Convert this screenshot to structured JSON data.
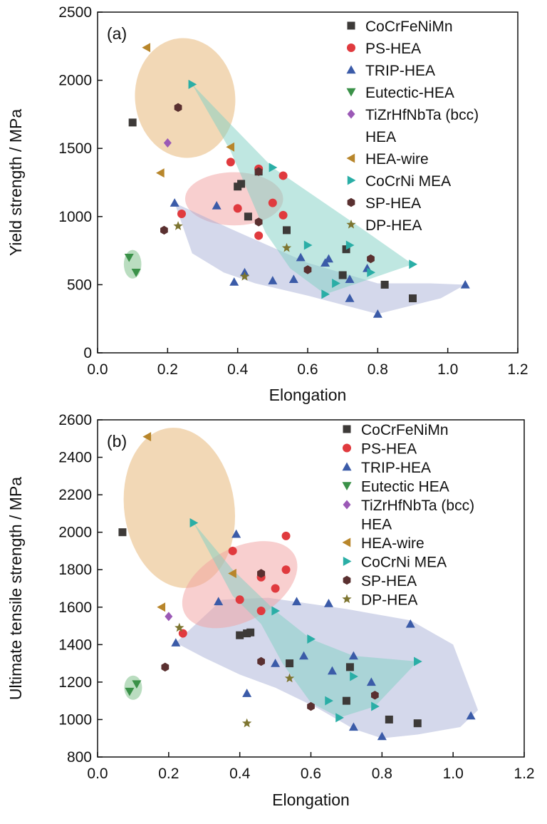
{
  "colors": {
    "CoCrFeNiMn": "#3d3a38",
    "PS-HEA": "#e03a3e",
    "TRIP-HEA": "#3b5ba8",
    "Eutectic-HEA": "#3a9148",
    "TiZrHfNbTa": "#9b59b6",
    "HEA-wire": "#b8862b",
    "CoCrNi": "#2aaea6",
    "SP-HEA": "#5a3030",
    "DP-HEA": "#7d7530"
  },
  "chart_data": [
    {
      "type": "scatter",
      "panel_label": "(a)",
      "xlabel": "Elongation",
      "ylabel": "Yield strength / MPa",
      "xlim": [
        0.0,
        1.2
      ],
      "ylim": [
        0,
        2500
      ],
      "xticks": [
        "0.0",
        "0.2",
        "0.4",
        "0.6",
        "0.8",
        "1.0",
        "1.2"
      ],
      "yticks": [
        "0",
        "500",
        "1000",
        "1500",
        "2000",
        "2500"
      ],
      "legend_position": "top-right",
      "legend": [
        {
          "label": "CoCrFeNiMn",
          "series": 0
        },
        {
          "label": "PS-HEA",
          "series": 1
        },
        {
          "label": "TRIP-HEA",
          "series": 2
        },
        {
          "label": "Eutectic-HEA",
          "series": 3
        },
        {
          "label": "TiZrHfNbTa (bcc)",
          "series": 4
        },
        {
          "label": "HEA",
          "series": null
        },
        {
          "label": "HEA-wire",
          "series": 5
        },
        {
          "label": "CoCrNi MEA",
          "series": 6
        },
        {
          "label": "SP-HEA",
          "series": 7
        },
        {
          "label": "DP-HEA",
          "series": 8
        }
      ],
      "series": [
        {
          "name": "CoCrFeNiMn",
          "marker": "square",
          "color": "#3d3a38",
          "points": [
            [
              0.1,
              1690
            ],
            [
              0.41,
              1240
            ],
            [
              0.4,
              1220
            ],
            [
              0.43,
              1000
            ],
            [
              0.46,
              1330
            ],
            [
              0.54,
              900
            ],
            [
              0.7,
              570
            ],
            [
              0.71,
              760
            ],
            [
              0.82,
              500
            ],
            [
              0.9,
              400
            ]
          ]
        },
        {
          "name": "PS-HEA",
          "marker": "circle",
          "color": "#e03a3e",
          "points": [
            [
              0.24,
              1020
            ],
            [
              0.38,
              1400
            ],
            [
              0.4,
              1060
            ],
            [
              0.46,
              1350
            ],
            [
              0.46,
              860
            ],
            [
              0.5,
              1100
            ],
            [
              0.53,
              1300
            ],
            [
              0.53,
              1010
            ]
          ]
        },
        {
          "name": "TRIP-HEA",
          "marker": "triangle-up",
          "color": "#3b5ba8",
          "points": [
            [
              0.22,
              1100
            ],
            [
              0.34,
              1080
            ],
            [
              0.39,
              520
            ],
            [
              0.42,
              590
            ],
            [
              0.5,
              530
            ],
            [
              0.56,
              540
            ],
            [
              0.58,
              700
            ],
            [
              0.65,
              660
            ],
            [
              0.66,
              690
            ],
            [
              0.72,
              400
            ],
            [
              0.72,
              540
            ],
            [
              0.77,
              620
            ],
            [
              0.8,
              285
            ],
            [
              1.05,
              500
            ]
          ]
        },
        {
          "name": "Eutectic-HEA",
          "marker": "triangle-down",
          "color": "#3a9148",
          "points": [
            [
              0.09,
              700
            ],
            [
              0.11,
              590
            ]
          ]
        },
        {
          "name": "TiZrHfNbTa (bcc) HEA",
          "marker": "diamond",
          "color": "#9b59b6",
          "points": [
            [
              0.2,
              1540
            ]
          ]
        },
        {
          "name": "HEA-wire",
          "marker": "triangle-left",
          "color": "#b8862b",
          "points": [
            [
              0.14,
              2240
            ],
            [
              0.18,
              1320
            ],
            [
              0.38,
              1510
            ]
          ]
        },
        {
          "name": "CoCrNi MEA",
          "marker": "triangle-right",
          "color": "#2aaea6",
          "points": [
            [
              0.27,
              1970
            ],
            [
              0.5,
              1360
            ],
            [
              0.6,
              790
            ],
            [
              0.65,
              430
            ],
            [
              0.68,
              510
            ],
            [
              0.72,
              790
            ],
            [
              0.78,
              590
            ],
            [
              0.9,
              650
            ]
          ]
        },
        {
          "name": "SP-HEA",
          "marker": "hexagon",
          "color": "#5a3030",
          "points": [
            [
              0.19,
              900
            ],
            [
              0.23,
              1800
            ],
            [
              0.46,
              1330
            ],
            [
              0.46,
              960
            ],
            [
              0.6,
              610
            ],
            [
              0.78,
              690
            ]
          ]
        },
        {
          "name": "DP-HEA",
          "marker": "star",
          "color": "#7d7530",
          "points": [
            [
              0.23,
              930
            ],
            [
              0.42,
              560
            ],
            [
              0.54,
              770
            ]
          ]
        }
      ],
      "regions": [
        {
          "color": "#e8b87a",
          "opacity": 0.55,
          "shape": "ellipse",
          "cx": 0.25,
          "cy": 1870,
          "rx": 0.143,
          "ry": 440,
          "angle_deg": -6
        },
        {
          "color": "#f2a0a0",
          "opacity": 0.5,
          "shape": "ellipse",
          "cx": 0.39,
          "cy": 1130,
          "rx": 0.14,
          "ry": 195,
          "angle_deg": 0
        },
        {
          "color": "#9fa8d2",
          "opacity": 0.45,
          "shape": "polygon",
          "points": [
            [
              0.22,
              1100
            ],
            [
              0.38,
              910
            ],
            [
              0.6,
              660
            ],
            [
              0.8,
              510
            ],
            [
              0.95,
              510
            ],
            [
              1.05,
              500
            ],
            [
              0.98,
              400
            ],
            [
              0.8,
              285
            ],
            [
              0.6,
              420
            ],
            [
              0.45,
              510
            ],
            [
              0.36,
              590
            ],
            [
              0.27,
              730
            ]
          ]
        },
        {
          "color": "#7fd0c4",
          "opacity": 0.5,
          "shape": "polygon",
          "points": [
            [
              0.27,
              1970
            ],
            [
              0.39,
              1650
            ],
            [
              0.5,
              1360
            ],
            [
              0.75,
              920
            ],
            [
              0.9,
              650
            ],
            [
              0.65,
              430
            ],
            [
              0.55,
              620
            ],
            [
              0.48,
              880
            ],
            [
              0.38,
              1480
            ]
          ]
        },
        {
          "color": "#8cc796",
          "opacity": 0.6,
          "shape": "ellipse",
          "cx": 0.1,
          "cy": 650,
          "rx": 0.025,
          "ry": 105,
          "angle_deg": 0
        }
      ]
    },
    {
      "type": "scatter",
      "panel_label": "(b)",
      "xlabel": "Elongation",
      "ylabel": "Ultimate tensile strength / MPa",
      "xlim": [
        0.0,
        1.2
      ],
      "ylim": [
        800,
        2600
      ],
      "xticks": [
        "0.0",
        "0.2",
        "0.4",
        "0.6",
        "0.8",
        "1.0",
        "1.2"
      ],
      "yticks": [
        "800",
        "1000",
        "1200",
        "1400",
        "1600",
        "1800",
        "2000",
        "2200",
        "2400",
        "2600"
      ],
      "legend_position": "top-right",
      "legend": [
        {
          "label": "CoCrFeNiMn",
          "series": 0
        },
        {
          "label": "PS-HEA",
          "series": 1
        },
        {
          "label": "TRIP-HEA",
          "series": 2
        },
        {
          "label": "Eutectic HEA",
          "series": 3
        },
        {
          "label": "TiZrHfNbTa (bcc)",
          "series": 4
        },
        {
          "label": "HEA",
          "series": null
        },
        {
          "label": "HEA-wire",
          "series": 5
        },
        {
          "label": "CoCrNi MEA",
          "series": 6
        },
        {
          "label": "SP-HEA",
          "series": 7
        },
        {
          "label": "DP-HEA",
          "series": 8
        }
      ],
      "series": [
        {
          "name": "CoCrFeNiMn",
          "marker": "square",
          "color": "#3d3a38",
          "points": [
            [
              0.07,
              2000
            ],
            [
              0.4,
              1450
            ],
            [
              0.42,
              1460
            ],
            [
              0.43,
              1465
            ],
            [
              0.46,
              1770
            ],
            [
              0.54,
              1300
            ],
            [
              0.7,
              1100
            ],
            [
              0.71,
              1280
            ],
            [
              0.82,
              1000
            ],
            [
              0.9,
              980
            ]
          ]
        },
        {
          "name": "PS-HEA",
          "marker": "circle",
          "color": "#e03a3e",
          "points": [
            [
              0.24,
              1460
            ],
            [
              0.38,
              1900
            ],
            [
              0.4,
              1640
            ],
            [
              0.46,
              1760
            ],
            [
              0.46,
              1580
            ],
            [
              0.5,
              1700
            ],
            [
              0.53,
              1980
            ],
            [
              0.53,
              1800
            ]
          ]
        },
        {
          "name": "TRIP-HEA",
          "marker": "triangle-up",
          "color": "#3b5ba8",
          "points": [
            [
              0.22,
              1410
            ],
            [
              0.34,
              1630
            ],
            [
              0.39,
              1990
            ],
            [
              0.42,
              1140
            ],
            [
              0.5,
              1300
            ],
            [
              0.56,
              1630
            ],
            [
              0.58,
              1340
            ],
            [
              0.65,
              1620
            ],
            [
              0.66,
              1260
            ],
            [
              0.72,
              1340
            ],
            [
              0.72,
              960
            ],
            [
              0.77,
              1200
            ],
            [
              0.8,
              910
            ],
            [
              0.88,
              1510
            ],
            [
              1.05,
              1020
            ]
          ]
        },
        {
          "name": "Eutectic HEA",
          "marker": "triangle-down",
          "color": "#3a9148",
          "points": [
            [
              0.09,
              1150
            ],
            [
              0.11,
              1190
            ]
          ]
        },
        {
          "name": "TiZrHfNbTa (bcc) HEA",
          "marker": "diamond",
          "color": "#9b59b6",
          "points": [
            [
              0.2,
              1550
            ]
          ]
        },
        {
          "name": "HEA-wire",
          "marker": "triangle-left",
          "color": "#b8862b",
          "points": [
            [
              0.14,
              2510
            ],
            [
              0.18,
              1600
            ],
            [
              0.38,
              1780
            ]
          ]
        },
        {
          "name": "CoCrNi MEA",
          "marker": "triangle-right",
          "color": "#2aaea6",
          "points": [
            [
              0.27,
              2050
            ],
            [
              0.5,
              1580
            ],
            [
              0.6,
              1430
            ],
            [
              0.65,
              1100
            ],
            [
              0.68,
              1010
            ],
            [
              0.72,
              1230
            ],
            [
              0.78,
              1070
            ],
            [
              0.9,
              1310
            ]
          ]
        },
        {
          "name": "SP-HEA",
          "marker": "hexagon",
          "color": "#5a3030",
          "points": [
            [
              0.19,
              1280
            ],
            [
              0.46,
              1310
            ],
            [
              0.46,
              1780
            ],
            [
              0.6,
              1070
            ],
            [
              0.78,
              1130
            ]
          ]
        },
        {
          "name": "DP-HEA",
          "marker": "star",
          "color": "#7d7530",
          "points": [
            [
              0.23,
              1490
            ],
            [
              0.42,
              980
            ],
            [
              0.54,
              1220
            ]
          ]
        }
      ],
      "regions": [
        {
          "color": "#e8b87a",
          "opacity": 0.55,
          "shape": "ellipse",
          "cx": 0.23,
          "cy": 2130,
          "rx": 0.155,
          "ry": 430,
          "angle_deg": -8
        },
        {
          "color": "#9fa8d2",
          "opacity": 0.45,
          "shape": "polygon",
          "points": [
            [
              0.22,
              1410
            ],
            [
              0.35,
              1640
            ],
            [
              0.48,
              1650
            ],
            [
              0.7,
              1590
            ],
            [
              0.88,
              1530
            ],
            [
              1.0,
              1400
            ],
            [
              1.07,
              1050
            ],
            [
              1.02,
              960
            ],
            [
              0.9,
              920
            ],
            [
              0.8,
              900
            ],
            [
              0.72,
              950
            ],
            [
              0.62,
              1060
            ],
            [
              0.5,
              1170
            ],
            [
              0.4,
              1240
            ],
            [
              0.3,
              1330
            ]
          ]
        },
        {
          "color": "#f2a0a0",
          "opacity": 0.5,
          "shape": "ellipse",
          "cx": 0.4,
          "cy": 1720,
          "rx": 0.175,
          "ry": 195,
          "angle_deg": -28
        },
        {
          "color": "#7fd0c4",
          "opacity": 0.5,
          "shape": "polygon",
          "points": [
            [
              0.27,
              2050
            ],
            [
              0.38,
              1800
            ],
            [
              0.5,
              1580
            ],
            [
              0.6,
              1430
            ],
            [
              0.72,
              1340
            ],
            [
              0.9,
              1310
            ],
            [
              0.78,
              1070
            ],
            [
              0.68,
              1010
            ],
            [
              0.6,
              1090
            ],
            [
              0.52,
              1300
            ],
            [
              0.46,
              1510
            ],
            [
              0.38,
              1660
            ]
          ]
        },
        {
          "color": "#8cc796",
          "opacity": 0.6,
          "shape": "ellipse",
          "cx": 0.1,
          "cy": 1170,
          "rx": 0.025,
          "ry": 65,
          "angle_deg": 0
        }
      ]
    }
  ]
}
